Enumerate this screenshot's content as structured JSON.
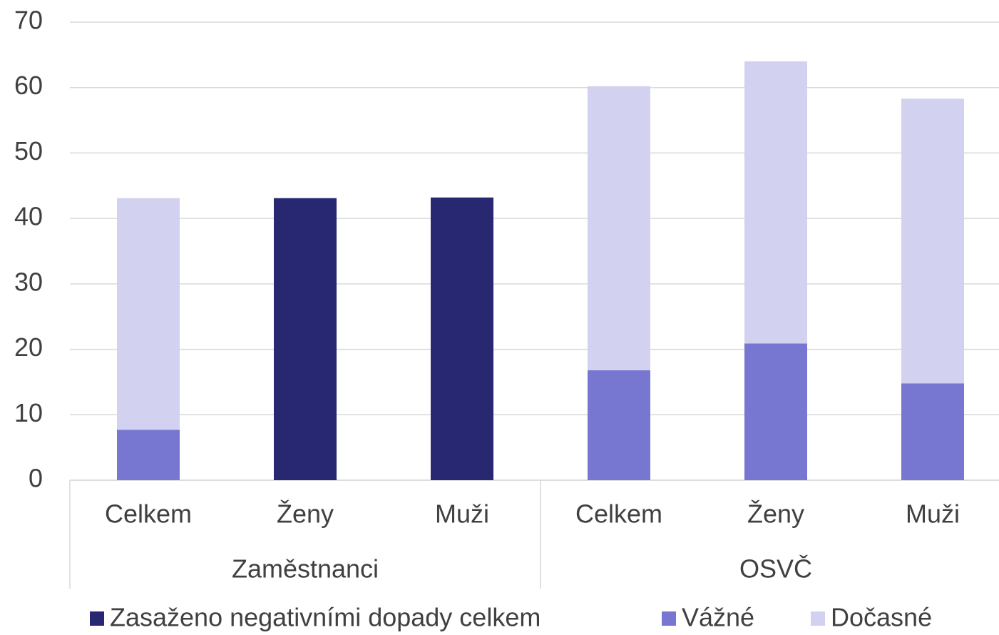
{
  "chart_data": {
    "type": "stacked_bar",
    "groups": [
      {
        "name": "Zaměstnanci",
        "categories": [
          "Celkem",
          "Ženy",
          "Muži"
        ]
      },
      {
        "name": "OSVČ",
        "categories": [
          "Celkem",
          "Ženy",
          "Muži"
        ]
      }
    ],
    "series": [
      {
        "name": "Zasaženo negativními dopady celkem",
        "color": "#272772",
        "values": [
          null,
          43.1,
          43.2,
          null,
          null,
          null
        ]
      },
      {
        "name": "Vážné",
        "color": "#7777d2",
        "values": [
          7.7,
          null,
          null,
          16.8,
          20.9,
          14.8
        ]
      },
      {
        "name": "Dočasné",
        "color": "#d2d2f0",
        "values": [
          35.4,
          null,
          null,
          43.4,
          43.1,
          43.5
        ]
      }
    ],
    "ylim": [
      0,
      70
    ],
    "yticks": [
      0,
      10,
      20,
      30,
      40,
      50,
      60,
      70
    ],
    "grid": true,
    "legend": "bottom"
  }
}
